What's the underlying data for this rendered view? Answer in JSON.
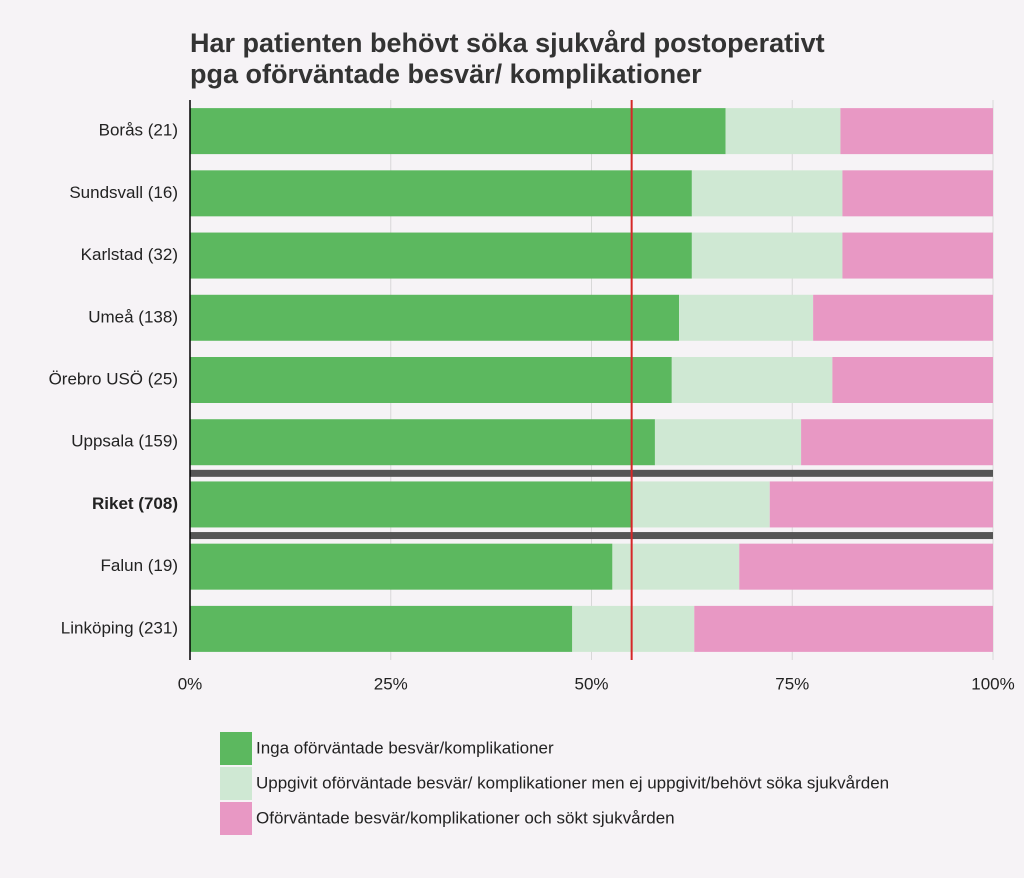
{
  "chart_data": {
    "type": "stacked_bar_horizontal",
    "title": "Har patienten behövt söka sjukvård postoperativt",
    "subtitle": "pga oförväntade besvär/ komplikationer",
    "categories": [
      "Borås (21)",
      "Sundsvall (16)",
      "Karlstad (32)",
      "Umeå (138)",
      "Örebro USÖ (25)",
      "Uppsala (159)",
      "Riket (708)",
      "Falun (19)",
      "Linköping (231)"
    ],
    "highlight": "Riket (708)",
    "series": [
      {
        "name": "Inga oförväntade besvär/komplikationer",
        "color": "#5cb85f",
        "values": [
          66.7,
          62.5,
          62.5,
          60.9,
          60.0,
          57.9,
          55.0,
          52.6,
          47.6
        ]
      },
      {
        "name": "Uppgivit oförväntade besvär/ komplikationer men ej uppgivit/behövt söka sjukvården",
        "color": "#cfe8d3",
        "values": [
          14.3,
          18.75,
          18.75,
          16.7,
          20.0,
          18.2,
          17.2,
          15.8,
          15.2
        ]
      },
      {
        "name": "Oförväntade besvär/komplikationer och sökt sjukvården",
        "color": "#e898c4",
        "values": [
          19.0,
          18.75,
          18.75,
          22.4,
          20.0,
          23.9,
          27.8,
          31.6,
          37.2
        ]
      }
    ],
    "reference_line": 55.0,
    "reference_color": "#d62728",
    "xlim": [
      0,
      100
    ],
    "xticks": [
      {
        "value": 0,
        "label": "0%"
      },
      {
        "value": 25,
        "label": "25%"
      },
      {
        "value": 50,
        "label": "50%"
      },
      {
        "value": 75,
        "label": "75%"
      },
      {
        "value": 100,
        "label": "100%"
      }
    ],
    "grid": true
  }
}
